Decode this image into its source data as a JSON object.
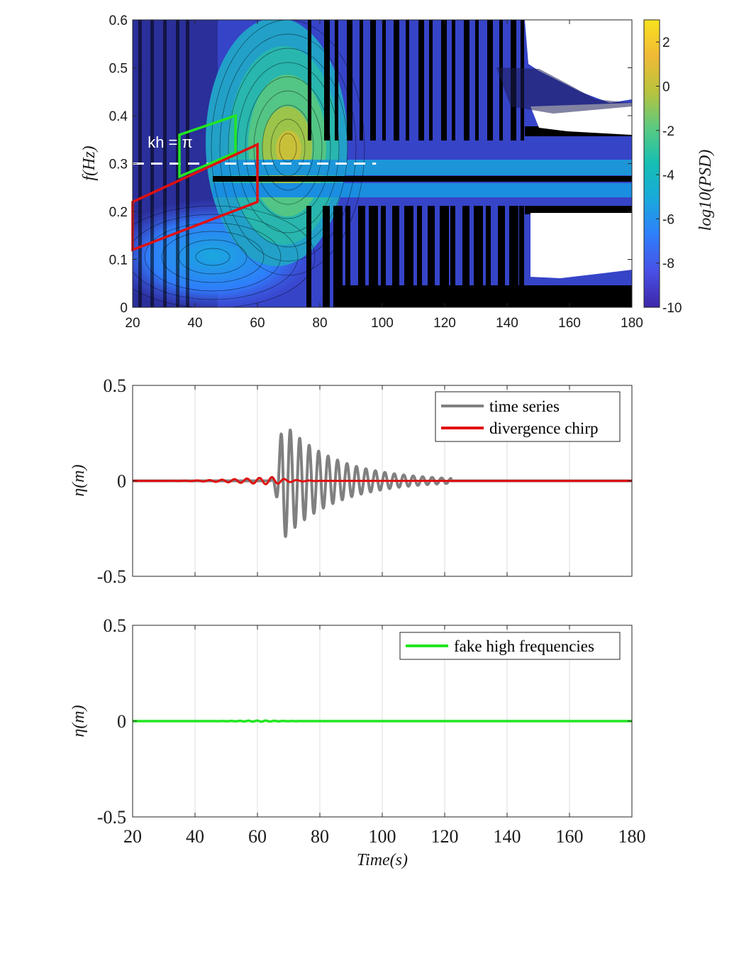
{
  "colors": {
    "white": "#ffffff",
    "black": "#000000",
    "axis": "#262626",
    "grid": "#dcdcdc",
    "gray_series": "#808080",
    "red_series": "#e01010",
    "green_series": "#22e622",
    "green_box": "#22e622",
    "red_box": "#e01010"
  },
  "colormap": [
    "#3e26a8",
    "#4850e5",
    "#2f7efb",
    "#1aa8dd",
    "#14bfb3",
    "#5bca80",
    "#b9c33c",
    "#f0ba36",
    "#f9e21d"
  ],
  "chart_data": [
    {
      "type": "heatmap",
      "xlabel": "",
      "ylabel": "f(Hz)",
      "xlim": [
        20,
        180
      ],
      "ylim": [
        0,
        0.6
      ],
      "x_ticks": [
        "20",
        "40",
        "60",
        "80",
        "100",
        "120",
        "140",
        "160",
        "180"
      ],
      "y_ticks": [
        "0",
        "0.1",
        "0.2",
        "0.3",
        "0.4",
        "0.5",
        "0.6"
      ],
      "colorbar": {
        "label": "log10(PSD)",
        "range": [
          -10,
          3
        ],
        "ticks": [
          "2",
          "0",
          "-2",
          "-4",
          "-6",
          "-8",
          "-10"
        ]
      },
      "annotation": {
        "text": "kh = π",
        "x": 23,
        "y": 0.345
      },
      "dashed_line": {
        "y": 0.3,
        "x": [
          20,
          98
        ]
      },
      "green_region": [
        [
          35,
          0.273
        ],
        [
          35,
          0.36
        ],
        [
          53,
          0.4
        ],
        [
          53,
          0.323
        ]
      ],
      "red_region": [
        [
          20,
          0.12
        ],
        [
          20,
          0.22
        ],
        [
          60,
          0.34
        ],
        [
          60,
          0.22
        ]
      ],
      "peak": {
        "t": 70,
        "f": 0.33,
        "log10_psd": 0
      }
    },
    {
      "type": "line",
      "xlabel": "",
      "ylabel": "η(m)",
      "xlim": [
        20,
        180
      ],
      "ylim": [
        -0.5,
        0.5
      ],
      "y_ticks": [
        "0.5",
        "0",
        "-0.5"
      ],
      "grid": true,
      "legend_position": "top-right",
      "series": [
        {
          "name": "time series",
          "color": "#808080",
          "wave": {
            "start": 64,
            "end": 122,
            "freq": 0.33,
            "peak_time": 68,
            "peak_amp": 0.31
          }
        },
        {
          "name": "divergence chirp",
          "color": "#e01010",
          "wave": {
            "start": 28,
            "end": 80,
            "freq": 0.25,
            "peak_time": 65,
            "peak_amp": 0.02
          }
        }
      ]
    },
    {
      "type": "line",
      "xlabel": "Time(s)",
      "ylabel": "η(m)",
      "xlim": [
        20,
        180
      ],
      "ylim": [
        -0.5,
        0.5
      ],
      "x_ticks": [
        "20",
        "40",
        "60",
        "80",
        "100",
        "120",
        "140",
        "160",
        "180"
      ],
      "y_ticks": [
        "0.5",
        "0",
        "-0.5"
      ],
      "grid": true,
      "legend_position": "top-right",
      "series": [
        {
          "name": "fake high frequencies",
          "color": "#22e622",
          "wave": {
            "start": 40,
            "end": 78,
            "freq": 0.36,
            "peak_time": 62,
            "peak_amp": 0.003
          }
        }
      ]
    }
  ]
}
